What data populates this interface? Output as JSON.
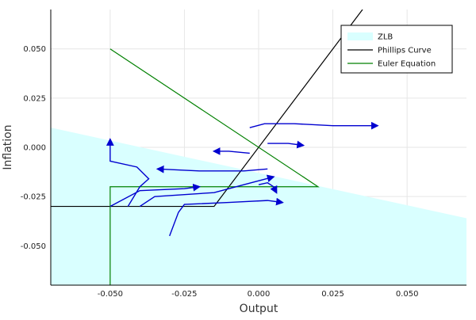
{
  "chart_data": {
    "type": "line",
    "xlabel": "Output",
    "ylabel": "Inflation",
    "xlim": [
      -0.07,
      0.07
    ],
    "ylim": [
      -0.07,
      0.07
    ],
    "grid": true,
    "legend_position": "top-right",
    "xticks": [
      -0.05,
      -0.025,
      0.0,
      0.025,
      0.05
    ],
    "xtick_labels": [
      "-0.050",
      "-0.025",
      "0.000",
      "0.025",
      "0.050"
    ],
    "yticks": [
      -0.05,
      -0.025,
      0.0,
      0.025,
      0.05
    ],
    "ytick_labels": [
      "-0.050",
      "-0.025",
      "0.000",
      "0.025",
      "0.050"
    ],
    "legend": [
      {
        "label": "ZLB",
        "color": "#d9ffff",
        "kind": "fill"
      },
      {
        "label": "Phillips Curve",
        "color": "#000000",
        "kind": "line"
      },
      {
        "label": "Euler Equation",
        "color": "#008000",
        "kind": "line"
      }
    ],
    "series": [
      {
        "name": "ZLB",
        "type": "area",
        "color": "#d9ffff",
        "x": [
          -0.07,
          0.07
        ],
        "y": [
          0.01,
          -0.036
        ],
        "fill_to": -0.07
      },
      {
        "name": "Phillips Curve",
        "type": "line",
        "color": "#000000",
        "x": [
          -0.07,
          -0.015,
          0.035
        ],
        "y": [
          -0.03,
          -0.03,
          0.07
        ]
      },
      {
        "name": "Euler Equation",
        "type": "line",
        "color": "#008000",
        "x": [
          -0.05,
          0.02,
          -0.05,
          -0.05
        ],
        "y": [
          0.05,
          -0.02,
          -0.02,
          -0.07
        ]
      }
    ],
    "trajectories": [
      {
        "color": "#0000d0",
        "x": [
          -0.05,
          -0.05,
          -0.041,
          -0.037,
          -0.04,
          -0.044
        ],
        "y": [
          0.004,
          -0.007,
          -0.01,
          -0.016,
          -0.02,
          -0.03
        ],
        "arrow_at": "start"
      },
      {
        "color": "#0000d0",
        "x": [
          -0.05,
          -0.04,
          -0.025,
          -0.02
        ],
        "y": [
          -0.03,
          -0.022,
          -0.021,
          -0.02
        ],
        "arrow_at": "end"
      },
      {
        "color": "#0000d0",
        "x": [
          -0.03,
          -0.027,
          -0.025,
          -0.01,
          0.003,
          0.008
        ],
        "y": [
          -0.045,
          -0.033,
          -0.029,
          -0.028,
          -0.027,
          -0.028
        ],
        "arrow_at": "end"
      },
      {
        "color": "#0000d0",
        "x": [
          -0.04,
          -0.035,
          -0.015,
          -0.005,
          0.005
        ],
        "y": [
          -0.03,
          -0.025,
          -0.023,
          -0.019,
          -0.015
        ],
        "arrow_at": "end"
      },
      {
        "color": "#0000d0",
        "x": [
          0.0,
          0.003,
          0.004,
          0.005,
          0.006
        ],
        "y": [
          -0.019,
          -0.018,
          -0.019,
          -0.02,
          -0.023
        ],
        "arrow_at": "end"
      },
      {
        "color": "#0000d0",
        "x": [
          0.003,
          -0.005,
          -0.02,
          -0.034
        ],
        "y": [
          -0.011,
          -0.012,
          -0.012,
          -0.011
        ],
        "arrow_at": "end"
      },
      {
        "color": "#0000d0",
        "x": [
          -0.003,
          -0.01,
          -0.015
        ],
        "y": [
          -0.003,
          -0.002,
          -0.002
        ],
        "arrow_at": "end"
      },
      {
        "color": "#0000d0",
        "x": [
          0.003,
          0.01,
          0.015
        ],
        "y": [
          0.002,
          0.002,
          0.001
        ],
        "arrow_at": "end"
      },
      {
        "color": "#0000d0",
        "x": [
          -0.003,
          0.002,
          0.012,
          0.025,
          0.04
        ],
        "y": [
          0.01,
          0.012,
          0.012,
          0.011,
          0.011
        ],
        "arrow_at": "end"
      }
    ]
  }
}
